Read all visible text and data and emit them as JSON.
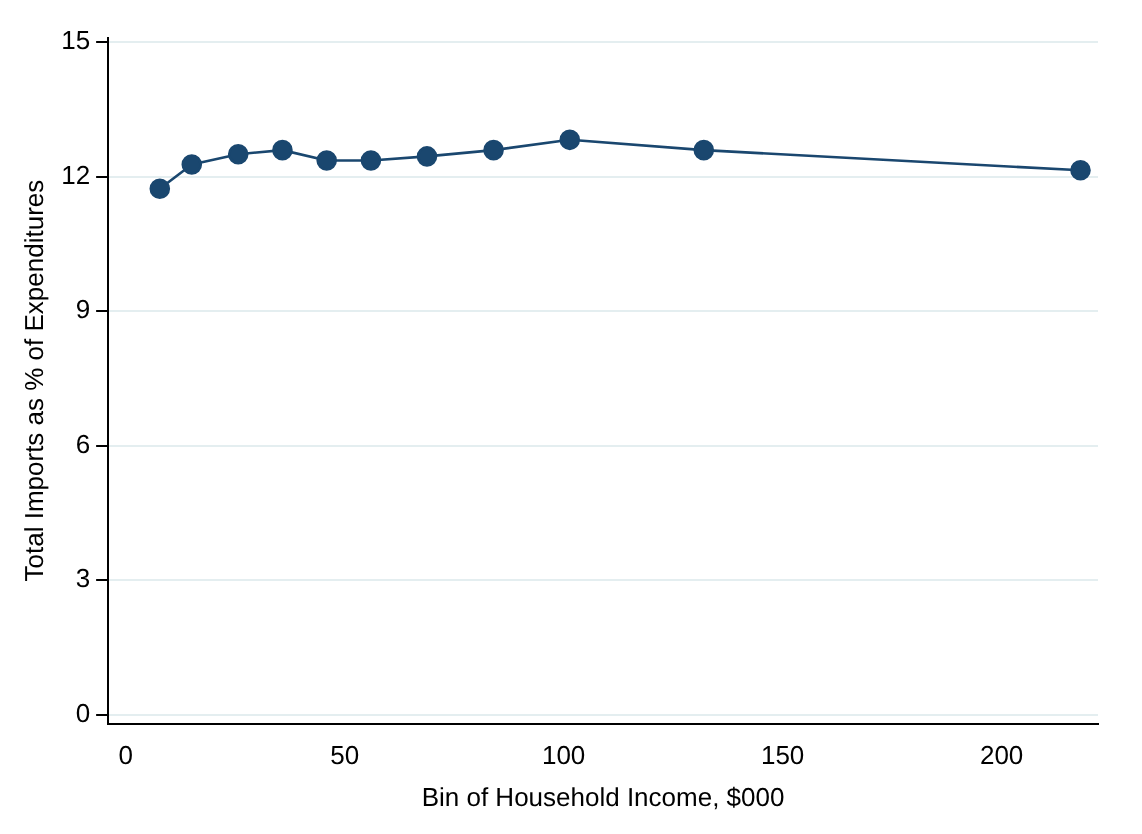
{
  "chart_data": {
    "type": "line",
    "xlabel": "Bin of Household Income, $000",
    "ylabel": "Total Imports as % of Expenditures",
    "x": [
      7.8,
      15.1,
      25.7,
      35.8,
      45.9,
      56,
      68.8,
      84,
      101.4,
      132,
      218
    ],
    "series": [
      {
        "color": "#1a476f",
        "values": [
          11.73,
          12.27,
          12.5,
          12.59,
          12.36,
          12.36,
          12.45,
          12.59,
          12.82,
          12.59,
          12.14
        ]
      }
    ],
    "xlim": [
      -4,
      222
    ],
    "xticks": [
      0,
      50,
      100,
      150,
      200
    ],
    "ylim": [
      -0.2,
      15.1
    ],
    "yticks": [
      0,
      3,
      6,
      9,
      12,
      15
    ],
    "grid": "y",
    "marker": "circle",
    "line_style": "solid",
    "legend": false
  }
}
